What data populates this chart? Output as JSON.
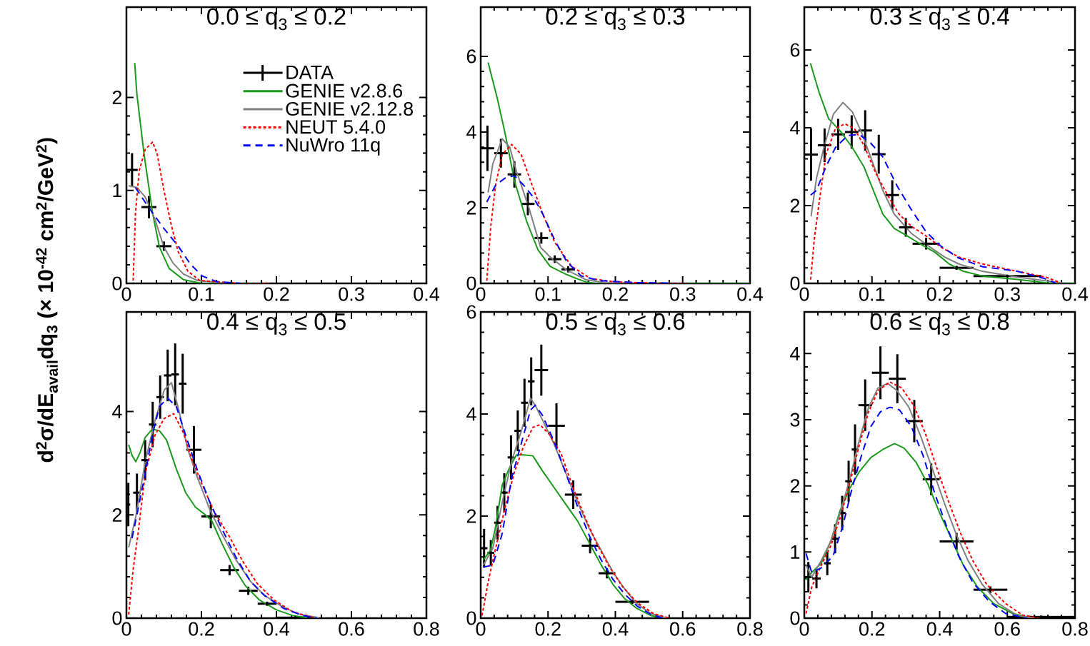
{
  "chart_data": [
    {
      "type": "line",
      "title": "0.0 ≤ q$_{3}$ ≤ 0.2",
      "ylabel": "d$^{2}$σ/dE$_{avail}$dq$_{3}$ (× 10$^{-42}$ cm$^{2}$/GeV$^{2}$)",
      "legend": "top right",
      "xlim": [
        0,
        0.4
      ],
      "ylim": [
        0,
        2.97
      ],
      "xticks": [
        0,
        0.1,
        0.2,
        0.3,
        0.4
      ],
      "yticks": [
        0,
        1,
        2
      ],
      "series": [
        {
          "name": "DATA",
          "type": "scatter",
          "color": "#000000",
          "x": [
            0.0075,
            0.03,
            0.05
          ],
          "values": [
            1.22,
            0.82,
            0.4
          ],
          "errors": [
            0.18,
            0.12,
            0.05
          ],
          "xerrors": [
            0.0075,
            0.01,
            0.01
          ]
        },
        {
          "name": "GENIE v2.8.6",
          "color": "#1a9a1a",
          "line_style": "solid",
          "x": [
            0.011,
            0.014,
            0.0235,
            0.035,
            0.044,
            0.057,
            0.076,
            0.1,
            0.18
          ],
          "values": [
            2.37,
            2.03,
            1.39,
            0.75,
            0.39,
            0.16,
            0.04,
            0,
            0
          ]
        },
        {
          "name": "GENIE v2.12.8",
          "color": "#808080",
          "line_style": "solid",
          "x": [
            0.003,
            0.014,
            0.025,
            0.038,
            0.05,
            0.062,
            0.076,
            0.095,
            0.136
          ],
          "values": [
            1.05,
            1.03,
            0.93,
            0.69,
            0.39,
            0.22,
            0.1,
            0.03,
            0
          ]
        },
        {
          "name": "NEUT 5.4.0",
          "color": "#ff0000",
          "line_style": "dotted",
          "x": [
            0.009,
            0.012,
            0.017,
            0.025,
            0.035,
            0.041,
            0.05,
            0.06,
            0.069,
            0.082,
            0.098,
            0.152,
            0.19
          ],
          "values": [
            0.03,
            0.75,
            1.21,
            1.44,
            1.52,
            1.39,
            1.0,
            0.62,
            0.34,
            0.13,
            0.03,
            0,
            0
          ]
        },
        {
          "name": "NuWro 11q",
          "color": "#0000ff",
          "line_style": "dashed",
          "x": [
            0.012,
            0.031,
            0.05,
            0.07,
            0.085,
            0.101,
            0.12,
            0.152
          ],
          "values": [
            1.03,
            0.8,
            0.59,
            0.39,
            0.21,
            0.08,
            0.02,
            0
          ]
        }
      ]
    },
    {
      "type": "line",
      "title": "0.2 ≤ q$_{3}$ ≤ 0.3",
      "xlim": [
        0,
        0.4
      ],
      "ylim": [
        0,
        7.3
      ],
      "xticks": [
        0,
        0.1,
        0.2,
        0.3,
        0.4
      ],
      "yticks": [
        0,
        2,
        4,
        6
      ],
      "series": [
        {
          "type": "scatter",
          "color": "#000000",
          "x": [
            0.01,
            0.03,
            0.05,
            0.07,
            0.09,
            0.11,
            0.13
          ],
          "values": [
            3.57,
            3.44,
            2.88,
            2.1,
            1.2,
            0.64,
            0.37
          ],
          "errors": [
            0.6,
            0.38,
            0.35,
            0.3,
            0.15,
            0.1,
            0.08
          ],
          "xerrors": [
            0.01,
            0.01,
            0.01,
            0.01,
            0.01,
            0.01,
            0.01
          ]
        },
        {
          "color": "#1a9a1a",
          "line_style": "solid",
          "x": [
            0.011,
            0.025,
            0.036,
            0.05,
            0.068,
            0.085,
            0.103,
            0.128,
            0.142,
            0.156,
            0.17,
            0.4
          ],
          "values": [
            5.84,
            4.86,
            3.98,
            2.72,
            1.65,
            0.89,
            0.45,
            0.23,
            0.13,
            0.04,
            0,
            0
          ]
        },
        {
          "color": "#808080",
          "line_style": "solid",
          "x": [
            0.011,
            0.018,
            0.032,
            0.043,
            0.053,
            0.071,
            0.089,
            0.103,
            0.128,
            0.156,
            0.184,
            0.3
          ],
          "values": [
            2.4,
            3.16,
            3.82,
            3.6,
            2.97,
            2.03,
            0.95,
            0.7,
            0.35,
            0.1,
            0.02,
            0
          ]
        },
        {
          "color": "#ff0000",
          "line_style": "dotted",
          "x": [
            0.009,
            0.015,
            0.022,
            0.032,
            0.046,
            0.06,
            0.075,
            0.092,
            0.11,
            0.135,
            0.163,
            0.198,
            0.27,
            0.31
          ],
          "values": [
            0.07,
            1.52,
            2.59,
            3.41,
            3.67,
            3.41,
            2.66,
            1.84,
            1.08,
            0.45,
            0.13,
            0.04,
            0,
            0
          ]
        },
        {
          "color": "#0000ff",
          "line_style": "dashed",
          "x": [
            0.009,
            0.022,
            0.036,
            0.05,
            0.064,
            0.078,
            0.092,
            0.11,
            0.128,
            0.149,
            0.177,
            0.234,
            0.287
          ],
          "values": [
            2.15,
            2.59,
            2.78,
            2.85,
            2.59,
            2.28,
            1.84,
            1.14,
            0.57,
            0.2,
            0.07,
            0.02,
            0
          ]
        }
      ]
    },
    {
      "type": "line",
      "title": "0.3 ≤ q$_{3}$ ≤ 0.4",
      "xlim": [
        0,
        0.4
      ],
      "ylim": [
        0,
        7.1
      ],
      "xticks": [
        0,
        0.1,
        0.2,
        0.3,
        0.4
      ],
      "yticks": [
        0,
        2,
        4,
        6
      ],
      "series": [
        {
          "type": "scatter",
          "color": "#000000",
          "x": [
            0.01,
            0.03,
            0.05,
            0.07,
            0.09,
            0.11,
            0.13,
            0.15,
            0.18,
            0.225,
            0.3
          ],
          "values": [
            3.31,
            3.55,
            3.83,
            3.89,
            3.93,
            3.32,
            2.27,
            1.44,
            1.02,
            0.4,
            0.19
          ],
          "errors": [
            0.67,
            0.43,
            0.4,
            0.43,
            0.52,
            0.5,
            0.38,
            0.24,
            0.15,
            0.05,
            null
          ],
          "xerrors": [
            0.01,
            0.01,
            0.01,
            0.01,
            0.01,
            0.01,
            0.01,
            0.01,
            0.02,
            0.025,
            0.05
          ]
        },
        {
          "color": "#1a9a1a",
          "line_style": "solid",
          "x": [
            0.009,
            0.022,
            0.036,
            0.053,
            0.071,
            0.088,
            0.102,
            0.116,
            0.133,
            0.151,
            0.168,
            0.193,
            0.214,
            0.235,
            0.263,
            0.315,
            0.36,
            0.4
          ],
          "values": [
            5.66,
            4.9,
            4.23,
            3.92,
            3.49,
            3.0,
            2.39,
            1.78,
            1.41,
            1.23,
            1.05,
            0.8,
            0.5,
            0.31,
            0.19,
            0.1,
            0.01,
            0
          ]
        },
        {
          "color": "#808080",
          "line_style": "solid",
          "x": [
            0.01,
            0.018,
            0.029,
            0.043,
            0.057,
            0.071,
            0.085,
            0.098,
            0.116,
            0.133,
            0.158,
            0.182,
            0.207,
            0.228,
            0.263,
            0.315,
            0.368,
            0.385
          ],
          "values": [
            1.72,
            2.7,
            3.49,
            4.35,
            4.65,
            4.41,
            3.86,
            3.25,
            2.39,
            1.78,
            1.29,
            0.98,
            0.68,
            0.5,
            0.31,
            0.16,
            0.04,
            0
          ]
        },
        {
          "color": "#ff0000",
          "line_style": "dotted",
          "x": [
            0.0094,
            0.015,
            0.022,
            0.032,
            0.046,
            0.06,
            0.074,
            0.088,
            0.106,
            0.123,
            0.14,
            0.158,
            0.179,
            0.203,
            0.228,
            0.263,
            0.315,
            0.357,
            0.375,
            0.378
          ],
          "values": [
            0.1,
            1.17,
            2.09,
            3.31,
            3.98,
            4.1,
            3.98,
            3.55,
            2.82,
            2.27,
            1.78,
            1.47,
            1.23,
            0.92,
            0.68,
            0.5,
            0.31,
            0.16,
            0.04,
            0
          ]
        },
        {
          "color": "#0000ff",
          "line_style": "dashed",
          "x": [
            0.0094,
            0.018,
            0.032,
            0.046,
            0.064,
            0.081,
            0.098,
            0.116,
            0.137,
            0.158,
            0.179,
            0.2,
            0.228,
            0.263,
            0.315,
            0.354,
            0.371
          ],
          "values": [
            2.27,
            2.39,
            3.0,
            3.49,
            3.8,
            3.83,
            3.61,
            3.25,
            2.51,
            1.9,
            1.35,
            0.98,
            0.65,
            0.43,
            0.31,
            0.13,
            0.01
          ]
        }
      ]
    },
    {
      "type": "line",
      "title": "0.4 ≤ q$_{3}$ ≤ 0.5",
      "xlim": [
        0,
        0.8
      ],
      "ylim": [
        0,
        5.93
      ],
      "xticks": [
        0,
        0.2,
        0.4,
        0.6,
        0.8
      ],
      "yticks": [
        0,
        2,
        4
      ],
      "series": [
        {
          "type": "scatter",
          "color": "#000000",
          "x": [
            0.005,
            0.028,
            0.05,
            0.07,
            0.09,
            0.11,
            0.13,
            0.15,
            0.18,
            0.225,
            0.275,
            0.325,
            0.375,
            0.45
          ],
          "values": [
            2.2,
            2.43,
            3.06,
            3.75,
            4.28,
            4.7,
            4.72,
            4.54,
            3.26,
            1.97,
            0.93,
            0.53,
            0.28,
            0.01
          ],
          "errors": [
            0.42,
            0.37,
            0.39,
            0.44,
            0.42,
            0.5,
            0.6,
            0.58,
            0.46,
            0.23,
            0.1,
            0.08,
            0.04,
            null
          ],
          "xerrors": [
            0.005,
            0.01,
            0.01,
            0.01,
            0.01,
            0.01,
            0.01,
            0.01,
            0.02,
            0.025,
            0.025,
            0.025,
            0.025,
            0.05
          ]
        },
        {
          "color": "#1a9a1a",
          "line_style": "solid",
          "x": [
            0.006,
            0.015,
            0.025,
            0.037,
            0.05,
            0.069,
            0.088,
            0.107,
            0.133,
            0.158,
            0.184,
            0.209,
            0.228,
            0.254,
            0.285,
            0.317,
            0.355,
            0.4,
            0.444,
            0.482
          ],
          "values": [
            3.36,
            3.15,
            3.03,
            3.22,
            3.5,
            3.66,
            3.63,
            3.45,
            2.89,
            2.43,
            2.15,
            2.01,
            1.88,
            1.46,
            1.0,
            0.63,
            0.35,
            0.16,
            0.05,
            0.01
          ]
        },
        {
          "color": "#808080",
          "line_style": "solid",
          "x": [
            0.006,
            0.025,
            0.05,
            0.076,
            0.101,
            0.12,
            0.139,
            0.164,
            0.19,
            0.222,
            0.254,
            0.292,
            0.33,
            0.368,
            0.419,
            0.463,
            0.514
          ],
          "values": [
            1.37,
            1.97,
            3.03,
            3.82,
            4.42,
            4.56,
            4.05,
            3.26,
            2.71,
            2.11,
            1.64,
            1.13,
            0.72,
            0.44,
            0.21,
            0.07,
            0.01
          ]
        },
        {
          "color": "#ff0000",
          "line_style": "dotted",
          "x": [
            0.006,
            0.018,
            0.031,
            0.05,
            0.076,
            0.101,
            0.126,
            0.152,
            0.177,
            0.203,
            0.234,
            0.273,
            0.311,
            0.349,
            0.394,
            0.444,
            0.495
          ],
          "values": [
            0.07,
            0.95,
            1.64,
            2.8,
            3.54,
            3.87,
            3.96,
            3.59,
            3.03,
            2.57,
            2.06,
            1.6,
            1.09,
            0.67,
            0.35,
            0.12,
            0.02
          ]
        },
        {
          "color": "#0000ff",
          "line_style": "dashed",
          "x": [
            0.015,
            0.031,
            0.05,
            0.069,
            0.088,
            0.11,
            0.133,
            0.158,
            0.19,
            0.222,
            0.254,
            0.292,
            0.33,
            0.368,
            0.419,
            0.47,
            0.508
          ],
          "values": [
            1.55,
            2.11,
            2.8,
            3.54,
            4.1,
            4.26,
            4.1,
            3.54,
            2.85,
            2.25,
            1.74,
            1.18,
            0.72,
            0.44,
            0.19,
            0.05,
            0
          ]
        }
      ]
    },
    {
      "type": "line",
      "title": "0.5 ≤ q$_{3}$ ≤ 0.6",
      "xlim": [
        0,
        0.8
      ],
      "ylim": [
        0,
        6
      ],
      "xticks": [
        0,
        0.2,
        0.4,
        0.6,
        0.8
      ],
      "yticks": [
        0,
        2,
        4,
        6
      ],
      "series": [
        {
          "type": "scatter",
          "color": "#000000",
          "x": [
            0.01,
            0.03,
            0.05,
            0.07,
            0.09,
            0.11,
            0.13,
            0.15,
            0.18,
            0.225,
            0.275,
            0.325,
            0.375,
            0.45
          ],
          "values": [
            1.37,
            1.28,
            1.87,
            2.46,
            3.15,
            3.67,
            4.22,
            4.64,
            4.86,
            3.77,
            2.42,
            1.42,
            0.88,
            0.32
          ],
          "errors": [
            0.38,
            0.25,
            0.33,
            0.38,
            0.43,
            0.4,
            0.47,
            0.47,
            0.5,
            0.44,
            0.28,
            0.15,
            0.1,
            0.04
          ],
          "xerrors": [
            0.01,
            0.01,
            0.01,
            0.01,
            0.01,
            0.01,
            0.01,
            0.01,
            0.02,
            0.025,
            0.025,
            0.025,
            0.025,
            0.05
          ]
        },
        {
          "color": "#1a9a1a",
          "line_style": "solid",
          "x": [
            0.008,
            0.029,
            0.043,
            0.064,
            0.085,
            0.106,
            0.127,
            0.155,
            0.183,
            0.218,
            0.253,
            0.288,
            0.323,
            0.358,
            0.393,
            0.428,
            0.464,
            0.506,
            0.548
          ],
          "values": [
            1.14,
            1.33,
            1.75,
            2.61,
            2.94,
            3.2,
            3.2,
            3.18,
            2.89,
            2.56,
            2.23,
            1.9,
            1.47,
            1.04,
            0.66,
            0.38,
            0.19,
            0.05,
            0
          ]
        },
        {
          "color": "#808080",
          "line_style": "solid",
          "x": [
            0.008,
            0.036,
            0.064,
            0.092,
            0.12,
            0.148,
            0.162,
            0.183,
            0.218,
            0.253,
            0.288,
            0.323,
            0.358,
            0.393,
            0.428,
            0.464,
            0.506,
            0.555
          ],
          "values": [
            1.04,
            1.37,
            2.27,
            3.08,
            3.65,
            4.31,
            4.17,
            3.89,
            3.41,
            2.84,
            2.27,
            1.75,
            1.33,
            0.9,
            0.57,
            0.28,
            0.09,
            0
          ]
        },
        {
          "color": "#ff0000",
          "line_style": "dotted",
          "x": [
            0.004,
            0.022,
            0.043,
            0.071,
            0.099,
            0.127,
            0.155,
            0.176,
            0.204,
            0.239,
            0.274,
            0.309,
            0.344,
            0.379,
            0.421,
            0.464,
            0.513,
            0.562
          ],
          "values": [
            0.05,
            0.71,
            1.33,
            2.13,
            2.84,
            3.36,
            3.74,
            3.79,
            3.6,
            3.22,
            2.56,
            1.99,
            1.47,
            1.04,
            0.62,
            0.31,
            0.09,
            0
          ]
        },
        {
          "color": "#0000ff",
          "line_style": "dashed",
          "x": [
            0.008,
            0.036,
            0.064,
            0.092,
            0.12,
            0.148,
            0.162,
            0.183,
            0.218,
            0.253,
            0.288,
            0.323,
            0.358,
            0.393,
            0.428,
            0.464,
            0.506,
            0.541
          ],
          "values": [
            1.0,
            1.04,
            1.66,
            2.75,
            3.41,
            4.08,
            4.17,
            3.98,
            3.46,
            2.84,
            2.18,
            1.61,
            1.14,
            0.76,
            0.47,
            0.24,
            0.07,
            0
          ]
        }
      ]
    },
    {
      "type": "line",
      "title": "0.6 ≤ q$_{3}$ ≤ 0.8",
      "xlim": [
        0,
        0.8
      ],
      "ylim": [
        0,
        4.63
      ],
      "xticks": [
        0,
        0.2,
        0.4,
        0.6,
        0.8
      ],
      "yticks": [
        0,
        1,
        2,
        3,
        4
      ],
      "series": [
        {
          "type": "scatter",
          "color": "#000000",
          "x": [
            0.012,
            0.036,
            0.068,
            0.091,
            0.112,
            0.131,
            0.15,
            0.18,
            0.225,
            0.275,
            0.325,
            0.375,
            0.45,
            0.55,
            0.7
          ],
          "values": [
            0.62,
            0.6,
            0.83,
            1.2,
            1.59,
            2.07,
            2.55,
            3.22,
            3.71,
            3.62,
            2.98,
            2.1,
            1.16,
            0.43,
            0.02
          ],
          "errors": [
            0.23,
            0.15,
            0.18,
            0.22,
            0.26,
            0.31,
            0.38,
            0.39,
            0.4,
            0.37,
            0.32,
            0.24,
            0.13,
            0.05,
            null
          ],
          "xerrors": [
            0.0125,
            0.0125,
            0.01,
            0.01,
            0.01,
            0.01,
            0.01,
            0.02,
            0.025,
            0.025,
            0.025,
            0.025,
            0.05,
            0.05,
            0.1
          ]
        },
        {
          "color": "#1a9a1a",
          "line_style": "solid",
          "x": [
            0.005,
            0.022,
            0.05,
            0.078,
            0.106,
            0.134,
            0.162,
            0.197,
            0.232,
            0.267,
            0.295,
            0.33,
            0.365,
            0.4,
            0.435,
            0.47,
            0.512,
            0.56,
            0.616,
            0.672
          ],
          "values": [
            0.58,
            0.69,
            0.83,
            1.16,
            1.63,
            1.96,
            2.21,
            2.43,
            2.55,
            2.64,
            2.57,
            2.36,
            2.03,
            1.59,
            1.2,
            0.8,
            0.47,
            0.22,
            0.07,
            0
          ]
        },
        {
          "color": "#808080",
          "line_style": "solid",
          "x": [
            0.005,
            0.022,
            0.05,
            0.078,
            0.106,
            0.134,
            0.162,
            0.19,
            0.218,
            0.246,
            0.274,
            0.309,
            0.344,
            0.379,
            0.414,
            0.449,
            0.484,
            0.526,
            0.574,
            0.63,
            0.68
          ],
          "values": [
            0.8,
            0.62,
            0.87,
            1.16,
            1.59,
            2.1,
            2.68,
            3.19,
            3.48,
            3.55,
            3.44,
            3.19,
            2.75,
            2.25,
            1.74,
            1.27,
            0.87,
            0.51,
            0.22,
            0.04,
            0
          ]
        },
        {
          "color": "#ff0000",
          "line_style": "dotted",
          "x": [
            0.005,
            0.022,
            0.05,
            0.078,
            0.106,
            0.134,
            0.162,
            0.19,
            0.218,
            0.253,
            0.288,
            0.323,
            0.358,
            0.393,
            0.428,
            0.463,
            0.498,
            0.539,
            0.595,
            0.644,
            0.693
          ],
          "values": [
            0.07,
            0.47,
            0.8,
            1.09,
            1.52,
            2.03,
            2.61,
            3.12,
            3.44,
            3.57,
            3.48,
            3.22,
            2.79,
            2.25,
            1.74,
            1.27,
            0.87,
            0.51,
            0.22,
            0.05,
            0
          ]
        },
        {
          "color": "#0000ff",
          "line_style": "dashed",
          "x": [
            0.005,
            0.022,
            0.05,
            0.085,
            0.113,
            0.141,
            0.169,
            0.197,
            0.225,
            0.253,
            0.281,
            0.316,
            0.351,
            0.386,
            0.421,
            0.456,
            0.498,
            0.547,
            0.595,
            0.658
          ],
          "values": [
            0.98,
            0.69,
            0.76,
            0.94,
            1.38,
            1.96,
            2.46,
            2.9,
            3.12,
            3.19,
            3.15,
            2.9,
            2.46,
            1.88,
            1.38,
            0.94,
            0.54,
            0.25,
            0.07,
            0
          ]
        }
      ]
    }
  ]
}
